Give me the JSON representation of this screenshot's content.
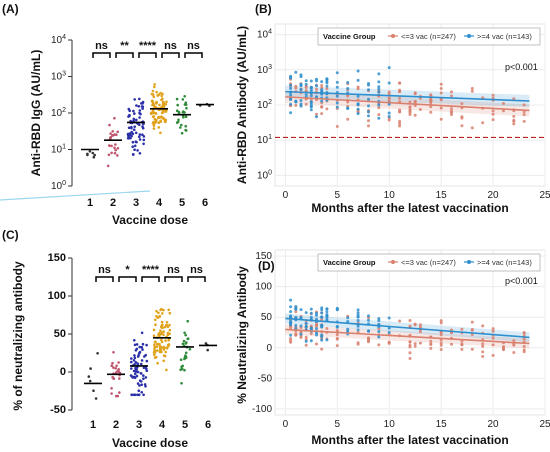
{
  "chart_data": [
    {
      "panel": "(A)",
      "type": "scatter",
      "xlabel": "Vaccine dose",
      "ylabel": "Anti-RBD IgG (AU/mL)",
      "yscale": "log",
      "ylim": [
        1,
        10000
      ],
      "categories": [
        "1",
        "2",
        "3",
        "4",
        "5",
        "6"
      ],
      "y_tick_labels": [
        "10^0",
        "10^1",
        "10^2",
        "10^3",
        "10^4"
      ],
      "medians": [
        10,
        18,
        55,
        130,
        90,
        170
      ],
      "colors": [
        "#333333",
        "#c0566e",
        "#2b2fa8",
        "#e0a21b",
        "#2e8b3a",
        "#333333"
      ],
      "n_points": [
        6,
        24,
        72,
        88,
        26,
        3
      ],
      "spreads": [
        [
          2,
          60
        ],
        [
          3,
          250
        ],
        [
          4,
          1500
        ],
        [
          20,
          1400
        ],
        [
          18,
          700
        ],
        [
          120,
          180
        ]
      ],
      "significance": [
        "ns",
        "**",
        "****",
        "ns",
        "ns"
      ]
    },
    {
      "panel": "(B)",
      "type": "scatter",
      "xlabel": "Months after the latest vaccination",
      "ylabel": "Anti-RBD Antibody (AU/mL)",
      "yscale": "log",
      "xlim": [
        -1,
        25
      ],
      "ylim": [
        0.5,
        20000
      ],
      "x_ticks": [
        0,
        5,
        10,
        15,
        20,
        25
      ],
      "y_tick_labels": [
        "10^0",
        "10^1",
        "10^2",
        "10^3",
        "10^4"
      ],
      "legend_title": "Vaccine Group",
      "series": [
        {
          "name": "<=3 vac (n=247)",
          "color": "#d9806f",
          "trend": [
            [
              0,
              170
            ],
            [
              23.5,
              70
            ]
          ]
        },
        {
          "name": ">=4 vac (n=143)",
          "color": "#2f8fce",
          "trend": [
            [
              0,
              240
            ],
            [
              23.5,
              130
            ]
          ]
        }
      ],
      "reference_line_y": 12,
      "annotation": "p<0.001"
    },
    {
      "panel": "(C)",
      "type": "scatter",
      "xlabel": "Vaccine dose",
      "ylabel": "% of neutralizing antibody",
      "ylim": [
        -50,
        150
      ],
      "categories": [
        "1",
        "2",
        "3",
        "4",
        "5",
        "6"
      ],
      "y_ticks": [
        -50,
        0,
        50,
        100,
        150
      ],
      "medians": [
        -15,
        -3,
        8,
        45,
        33,
        35
      ],
      "colors": [
        "#333333",
        "#c0566e",
        "#2b2fa8",
        "#e0a21b",
        "#2e8b3a",
        "#333333"
      ],
      "n_points": [
        6,
        24,
        72,
        88,
        26,
        3
      ],
      "spreads": [
        [
          -40,
          95
        ],
        [
          -35,
          60
        ],
        [
          -30,
          95
        ],
        [
          -30,
          98
        ],
        [
          -35,
          85
        ],
        [
          15,
          55
        ]
      ],
      "significance": [
        "ns",
        "*",
        "****",
        "ns",
        "ns"
      ]
    },
    {
      "panel": "(D)",
      "type": "scatter",
      "xlabel": "Months after the latest vaccination",
      "ylabel": "% Neutralizing Antibody",
      "xlim": [
        -1,
        25
      ],
      "ylim": [
        -110,
        160
      ],
      "x_ticks": [
        0,
        5,
        10,
        15,
        20,
        25
      ],
      "y_ticks": [
        -100,
        -50,
        0,
        50,
        100,
        150
      ],
      "legend_title": "Vaccine Group",
      "series": [
        {
          "name": "<=3 vac (n=247)",
          "color": "#d9806f",
          "trend": [
            [
              0,
              30
            ],
            [
              23.5,
              7
            ]
          ]
        },
        {
          "name": ">=4 vac (n=143)",
          "color": "#2f8fce",
          "trend": [
            [
              0,
              48
            ],
            [
              23.5,
              17
            ]
          ]
        }
      ],
      "annotation": "p<0.001"
    }
  ]
}
